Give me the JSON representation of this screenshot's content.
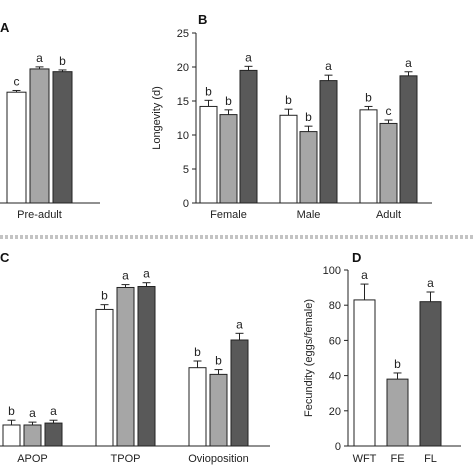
{
  "colors": {
    "series": [
      "#ffffff",
      "#a6a6a6",
      "#595959"
    ],
    "axis": "#222222",
    "divider": "#888888"
  },
  "chart_data": [
    {
      "panel": "A",
      "type": "bar",
      "categories": [
        "Pre-adult"
      ],
      "series": [
        {
          "values": [
            16.2
          ],
          "errors": [
            0.25
          ],
          "letters": [
            "c"
          ]
        },
        {
          "values": [
            19.6
          ],
          "errors": [
            0.3
          ],
          "letters": [
            "a"
          ]
        },
        {
          "values": [
            19.2
          ],
          "errors": [
            0.25
          ],
          "letters": [
            "b"
          ]
        }
      ],
      "ylim": [
        0,
        25
      ],
      "yticks": [],
      "ylabel": ""
    },
    {
      "panel": "B",
      "type": "bar",
      "categories": [
        "Female",
        "Male",
        "Adult"
      ],
      "series": [
        {
          "values": [
            14.2,
            12.9,
            13.7
          ],
          "errors": [
            0.9,
            0.9,
            0.5
          ],
          "letters": [
            "b",
            "b",
            "b"
          ]
        },
        {
          "values": [
            13.0,
            10.5,
            11.7
          ],
          "errors": [
            0.7,
            0.8,
            0.5
          ],
          "letters": [
            "b",
            "b",
            "c"
          ]
        },
        {
          "values": [
            19.5,
            18.0,
            18.7
          ],
          "errors": [
            0.6,
            0.8,
            0.6
          ],
          "letters": [
            "a",
            "a",
            "a"
          ]
        }
      ],
      "ylim": [
        0,
        25
      ],
      "yticks": [
        0,
        5,
        10,
        15,
        20,
        25
      ],
      "ylabel": "Longevity (d)"
    },
    {
      "panel": "C",
      "type": "bar",
      "categories": [
        "APOP",
        "TPOP",
        "Ovioposition"
      ],
      "series": [
        {
          "values": [
            2.2,
            14.3,
            8.2
          ],
          "errors": [
            0.5,
            0.5,
            0.7
          ],
          "letters": [
            "b",
            "b",
            "b"
          ]
        },
        {
          "values": [
            2.2,
            16.6,
            7.5
          ],
          "errors": [
            0.3,
            0.3,
            0.5
          ],
          "letters": [
            "a",
            "a",
            "b"
          ]
        },
        {
          "values": [
            2.4,
            16.7,
            11.1
          ],
          "errors": [
            0.3,
            0.4,
            0.7
          ],
          "letters": [
            "a",
            "a",
            "a"
          ]
        }
      ],
      "ylim": [
        0,
        20
      ],
      "yticks": [],
      "ylabel": ""
    },
    {
      "panel": "D",
      "type": "bar",
      "categories": [
        "WFT",
        "FE",
        "FL"
      ],
      "series": [
        {
          "values": [
            83,
            38,
            82
          ],
          "errors": [
            9,
            3.5,
            5.5
          ],
          "letters": [
            "a",
            "b",
            "a"
          ]
        }
      ],
      "bar_colors": [
        "#ffffff",
        "#a6a6a6",
        "#595959"
      ],
      "ylim": [
        0,
        100
      ],
      "yticks": [
        0,
        20,
        40,
        60,
        80,
        100
      ],
      "ylabel": "Fecundity (eggs/female)"
    }
  ]
}
